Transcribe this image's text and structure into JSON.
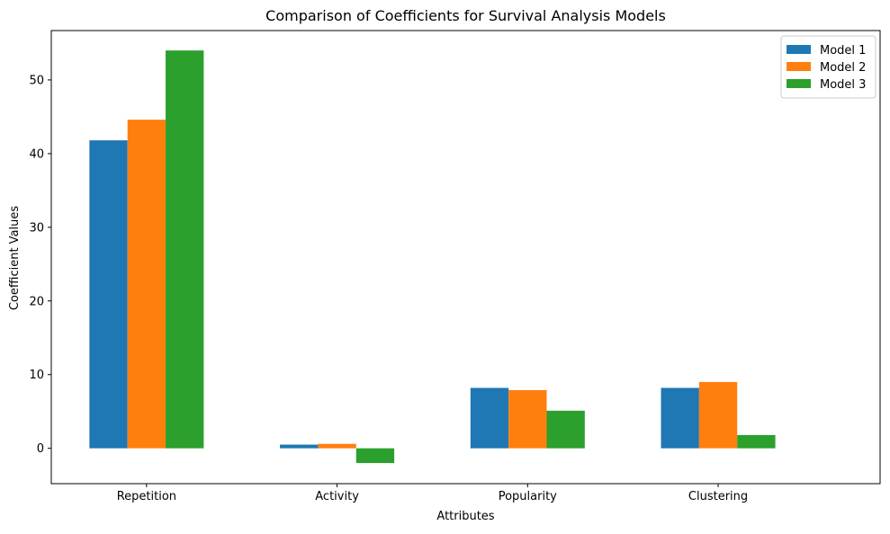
{
  "chart_data": {
    "type": "bar",
    "title": "Comparison of Coefficients for Survival Analysis Models",
    "xlabel": "Attributes",
    "ylabel": "Coefficient Values",
    "categories": [
      "Repetition",
      "Activity",
      "Popularity",
      "Clustering"
    ],
    "series": [
      {
        "name": "Model 1",
        "color": "#1f77b4",
        "values": [
          41.8,
          0.5,
          8.2,
          8.2
        ]
      },
      {
        "name": "Model 2",
        "color": "#ff7f0e",
        "values": [
          44.6,
          0.6,
          7.9,
          9.0
        ]
      },
      {
        "name": "Model 3",
        "color": "#2ca02c",
        "values": [
          54.0,
          -2.0,
          5.1,
          1.8
        ]
      }
    ],
    "ylim": [
      -4.8,
      56.7
    ],
    "yticks": [
      0,
      10,
      20,
      30,
      40,
      50
    ],
    "legend_position": "top-right",
    "grid": false
  }
}
